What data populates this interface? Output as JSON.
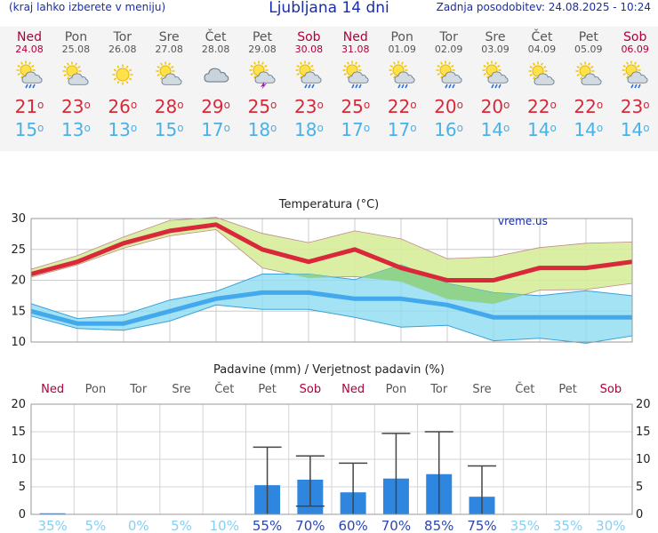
{
  "header": {
    "note": "(kraj lahko izberete v meniju)",
    "title": "Ljubljana 14 dni",
    "updated": "Zadnja posodobitev: 24.08.2025 - 10:24"
  },
  "days": [
    {
      "name": "Ned",
      "date": "24.08",
      "icon": "sun-cloud-rain-icon",
      "max": "21",
      "min": "15",
      "weekend": true
    },
    {
      "name": "Pon",
      "date": "25.08",
      "icon": "sun-cloud-icon",
      "max": "23",
      "min": "13",
      "weekend": false
    },
    {
      "name": "Tor",
      "date": "26.08",
      "icon": "sun-icon",
      "max": "26",
      "min": "13",
      "weekend": false
    },
    {
      "name": "Sre",
      "date": "27.08",
      "icon": "sun-cloud-icon",
      "max": "28",
      "min": "15",
      "weekend": false
    },
    {
      "name": "Čet",
      "date": "28.08",
      "icon": "cloud-icon",
      "max": "29",
      "min": "17",
      "weekend": false
    },
    {
      "name": "Pet",
      "date": "29.08",
      "icon": "cloud-thunder-icon",
      "max": "25",
      "min": "18",
      "weekend": false
    },
    {
      "name": "Sob",
      "date": "30.08",
      "icon": "sun-cloud-rain-icon",
      "max": "23",
      "min": "18",
      "weekend": true
    },
    {
      "name": "Ned",
      "date": "31.08",
      "icon": "sun-cloud-rain-icon",
      "max": "25",
      "min": "17",
      "weekend": true
    },
    {
      "name": "Pon",
      "date": "01.09",
      "icon": "sun-cloud-rain-icon",
      "max": "22",
      "min": "17",
      "weekend": false
    },
    {
      "name": "Tor",
      "date": "02.09",
      "icon": "sun-cloud-rain-icon",
      "max": "20",
      "min": "16",
      "weekend": false
    },
    {
      "name": "Sre",
      "date": "03.09",
      "icon": "sun-cloud-rain-icon",
      "max": "20",
      "min": "14",
      "weekend": false
    },
    {
      "name": "Čet",
      "date": "04.09",
      "icon": "sun-cloud-icon",
      "max": "22",
      "min": "14",
      "weekend": false
    },
    {
      "name": "Pet",
      "date": "05.09",
      "icon": "sun-cloud-icon",
      "max": "22",
      "min": "14",
      "weekend": false
    },
    {
      "name": "Sob",
      "date": "06.09",
      "icon": "sun-cloud-rain-icon",
      "max": "23",
      "min": "14",
      "weekend": true
    }
  ],
  "colors": {
    "max_line": "#d8283a",
    "max_band": "#d6ec9a",
    "min_line": "#43a9ec",
    "min_band": "#8cdcf0",
    "overlap": "#8fd48a",
    "bar": "#2e86df",
    "whisker": "#444444",
    "weekend": "#b0003a",
    "weekday": "#555555",
    "prob_high": "#2a46b0",
    "prob_low": "#86d0f2"
  },
  "chart_data": [
    {
      "type": "line",
      "title": "Temperatura (°C)",
      "watermark": "vreme.us",
      "ylim": [
        10,
        30
      ],
      "yticks": [
        10,
        15,
        20,
        25,
        30
      ],
      "x": [
        0,
        1,
        2,
        3,
        4,
        5,
        6,
        7,
        8,
        9,
        10,
        11,
        12,
        13
      ],
      "series": [
        {
          "name": "max",
          "values": [
            21,
            23,
            26,
            28,
            29,
            25,
            23,
            25,
            22,
            20,
            20,
            22,
            22,
            23
          ],
          "band_low": [
            20.5,
            22.5,
            25.2,
            27.2,
            28.2,
            22,
            20.4,
            20.6,
            19.8,
            17,
            16.2,
            18.4,
            18.5,
            19.5
          ],
          "band_high": [
            21.8,
            24,
            27,
            29.7,
            30.2,
            27.6,
            26.1,
            28,
            26.7,
            23.5,
            23.8,
            25.3,
            26,
            26.2
          ]
        },
        {
          "name": "min",
          "values": [
            15,
            13,
            13,
            15,
            17,
            18,
            18,
            17,
            17,
            16,
            14,
            14,
            14,
            14
          ],
          "band_low": [
            14.2,
            12.2,
            11.9,
            13.4,
            16,
            15.3,
            15.3,
            14,
            12.4,
            12.7,
            10.2,
            10.6,
            9.8,
            11
          ],
          "band_high": [
            16.2,
            13.8,
            14.4,
            16.8,
            18.2,
            21,
            21,
            20.1,
            22.5,
            19.5,
            18,
            17.5,
            18.3,
            17.5
          ]
        }
      ]
    },
    {
      "type": "bar",
      "title": "Padavine (mm) / Verjetnost padavin (%)",
      "ylim": [
        0,
        20
      ],
      "yticks": [
        0,
        5,
        10,
        15,
        20
      ],
      "categories": [
        "Ned",
        "Pon",
        "Tor",
        "Sre",
        "Čet",
        "Pet",
        "Sob",
        "Ned",
        "Pon",
        "Tor",
        "Sre",
        "Čet",
        "Pet",
        "Sob"
      ],
      "values": [
        0.2,
        0,
        0,
        0,
        0,
        5.3,
        6.3,
        4,
        6.5,
        7.3,
        3.2,
        0,
        0,
        0
      ],
      "err_low": [
        0,
        0,
        0,
        0,
        0,
        0,
        1.5,
        0,
        0,
        0,
        0,
        0,
        0,
        0
      ],
      "err_high": [
        0,
        0,
        0,
        0,
        0,
        12.2,
        10.6,
        9.3,
        14.7,
        15,
        8.8,
        0,
        0,
        0
      ],
      "probability": [
        "35%",
        "5%",
        "0%",
        "5%",
        "10%",
        "55%",
        "70%",
        "60%",
        "70%",
        "85%",
        "75%",
        "35%",
        "35%",
        "30%"
      ],
      "prob_values": [
        35,
        5,
        0,
        5,
        10,
        55,
        70,
        60,
        70,
        85,
        75,
        35,
        35,
        30
      ]
    }
  ]
}
